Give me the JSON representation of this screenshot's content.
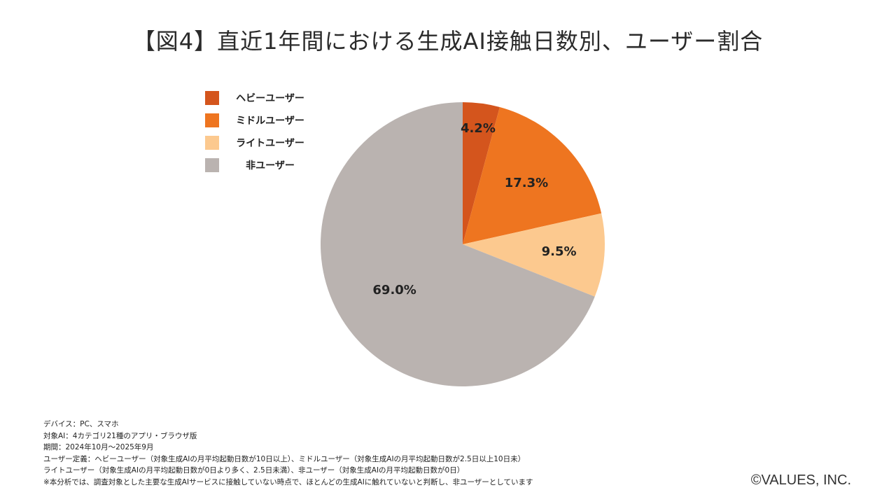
{
  "title": "【図4】直近1年間における生成AI接触日数別、ユーザー割合",
  "chart_data": {
    "type": "pie",
    "categories": [
      "ヘビーユーザー",
      "ミドルユーザー",
      "ライトユーザー",
      "非ユーザー"
    ],
    "values": [
      4.2,
      17.3,
      9.5,
      69.0
    ],
    "labels": [
      "4.2%",
      "17.3%",
      "9.5%",
      "69.0%"
    ],
    "colors": [
      "#d4551d",
      "#ee7520",
      "#fcc98f",
      "#bab3b0"
    ],
    "start": "12 o'clock",
    "direction": "clockwise",
    "legend_position": "top-left"
  },
  "notes": [
    "デバイス：PC、スマホ",
    "対象AI：4カテゴリ21種のアプリ・ブラウザ版",
    "期間：2024年10月～2025年9月",
    "ユーザー定義：ヘビーユーザー（対象生成AIの月平均起動日数が10日以上）、ミドルユーザー（対象生成AIの月平均起動日数が2.5日以上10日未）",
    "ライトユーザー（対象生成AIの月平均起動日数が0日より多く、2.5日未満）、非ユーザー（対象生成AIの月平均起動日数が0日）",
    "※本分析では、調査対象とした主要な生成AIサービスに接触していない時点で、ほとんどの生成AIに触れていないと判断し、非ユーザーとしています"
  ],
  "copyright": "©VALUES, INC."
}
